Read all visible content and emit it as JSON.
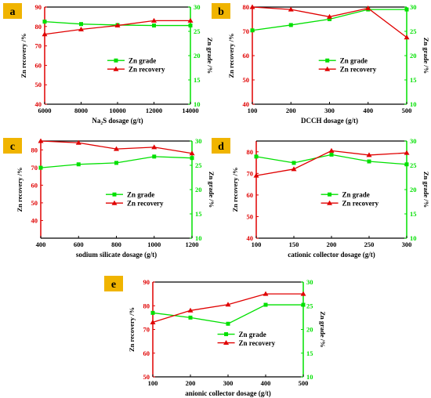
{
  "colors": {
    "grade": "#00e000",
    "recovery": "#e00000",
    "panel_label_bg": "#f0b400",
    "axis": "#000000"
  },
  "chart_data": [
    {
      "panel_label": "a",
      "type": "line",
      "xlabel": "Na₂S dosage (g/t)",
      "ylabel": "Zn recovery /%",
      "y2label": "Zn grade /%",
      "x": [
        6000,
        8000,
        10000,
        12000,
        14000
      ],
      "xlim": [
        6000,
        14000
      ],
      "xticks": [
        6000,
        8000,
        10000,
        12000,
        14000
      ],
      "ylim": [
        40,
        90
      ],
      "yticks": [
        40,
        50,
        60,
        70,
        80,
        90
      ],
      "y2lim": [
        10,
        30
      ],
      "y2ticks": [
        10,
        15,
        20,
        25,
        30
      ],
      "legend": "center-right",
      "series": [
        {
          "name": "Zn grade",
          "axis": "right",
          "marker": "square",
          "values": [
            27,
            26.5,
            26.3,
            26.2,
            26.2
          ]
        },
        {
          "name": "Zn recovery",
          "axis": "left",
          "marker": "triangle",
          "values": [
            76,
            78.5,
            80.5,
            83,
            83
          ]
        }
      ]
    },
    {
      "panel_label": "b",
      "type": "line",
      "xlabel": "DCCH dosage (g/t)",
      "ylabel": "Zn recovery /%",
      "y2label": "Zn grade /%",
      "x": [
        100,
        200,
        300,
        400,
        500
      ],
      "xlim": [
        100,
        500
      ],
      "xticks": [
        100,
        200,
        300,
        400,
        500
      ],
      "ylim": [
        40,
        80
      ],
      "yticks": [
        40,
        50,
        60,
        70,
        80
      ],
      "y2lim": [
        10,
        30
      ],
      "y2ticks": [
        10,
        15,
        20,
        25,
        30
      ],
      "legend": "center-right",
      "series": [
        {
          "name": "Zn grade",
          "axis": "right",
          "marker": "square",
          "values": [
            25.2,
            26.3,
            27.5,
            29.5,
            29.5
          ]
        },
        {
          "name": "Zn recovery",
          "axis": "left",
          "marker": "triangle",
          "values": [
            80,
            79,
            76,
            79.5,
            67.5
          ]
        }
      ]
    },
    {
      "panel_label": "c",
      "type": "line",
      "xlabel": "sodium silicate dosage (g/t)",
      "ylabel": "Zn recovery /%",
      "y2label": "Zn grade /%",
      "x": [
        400,
        600,
        800,
        1000,
        1200
      ],
      "xlim": [
        400,
        1200
      ],
      "xticks": [
        400,
        600,
        800,
        1000,
        1200
      ],
      "ylim": [
        30,
        85
      ],
      "yticks": [
        40,
        50,
        60,
        70,
        80
      ],
      "y2lim": [
        10,
        30
      ],
      "y2ticks": [
        10,
        15,
        20,
        25,
        30
      ],
      "legend": "center-right",
      "series": [
        {
          "name": "Zn grade",
          "axis": "right",
          "marker": "square",
          "values": [
            24.5,
            25.2,
            25.5,
            26.8,
            26.5
          ]
        },
        {
          "name": "Zn recovery",
          "axis": "left",
          "marker": "triangle",
          "values": [
            85,
            84,
            80.5,
            81.5,
            78
          ]
        }
      ]
    },
    {
      "panel_label": "d",
      "type": "line",
      "xlabel": "cationic collector  dosage (g/t)",
      "ylabel": "Zn recovery /%",
      "y2label": "Zn grade /%",
      "x": [
        100,
        150,
        200,
        250,
        300
      ],
      "xlim": [
        100,
        300
      ],
      "xticks": [
        100,
        150,
        200,
        250,
        300
      ],
      "ylim": [
        40,
        85
      ],
      "yticks": [
        40,
        50,
        60,
        70,
        80
      ],
      "y2lim": [
        10,
        30
      ],
      "y2ticks": [
        10,
        15,
        20,
        25,
        30
      ],
      "legend": "center-right",
      "series": [
        {
          "name": "Zn grade",
          "axis": "right",
          "marker": "square",
          "values": [
            26.8,
            25.5,
            27.2,
            25.8,
            25.2
          ]
        },
        {
          "name": "Zn recovery",
          "axis": "left",
          "marker": "triangle",
          "values": [
            69,
            72,
            80.5,
            78.5,
            79.5
          ]
        }
      ]
    },
    {
      "panel_label": "e",
      "type": "line",
      "xlabel": "anionic collector  dosage (g/t)",
      "ylabel": "Zn recovery /%",
      "y2label": "Zn grade /%",
      "x": [
        100,
        200,
        300,
        400,
        500
      ],
      "xlim": [
        100,
        500
      ],
      "xticks": [
        100,
        200,
        300,
        400,
        500
      ],
      "ylim": [
        50,
        90
      ],
      "yticks": [
        50,
        60,
        70,
        80,
        90
      ],
      "y2lim": [
        10,
        30
      ],
      "y2ticks": [
        10,
        15,
        20,
        25,
        30
      ],
      "legend": "center-right",
      "series": [
        {
          "name": "Zn grade",
          "axis": "right",
          "marker": "square",
          "values": [
            23.5,
            22.5,
            21.2,
            25.2,
            25.2
          ]
        },
        {
          "name": "Zn recovery",
          "axis": "left",
          "marker": "triangle",
          "values": [
            73,
            78,
            80.5,
            85,
            85
          ]
        }
      ]
    }
  ]
}
